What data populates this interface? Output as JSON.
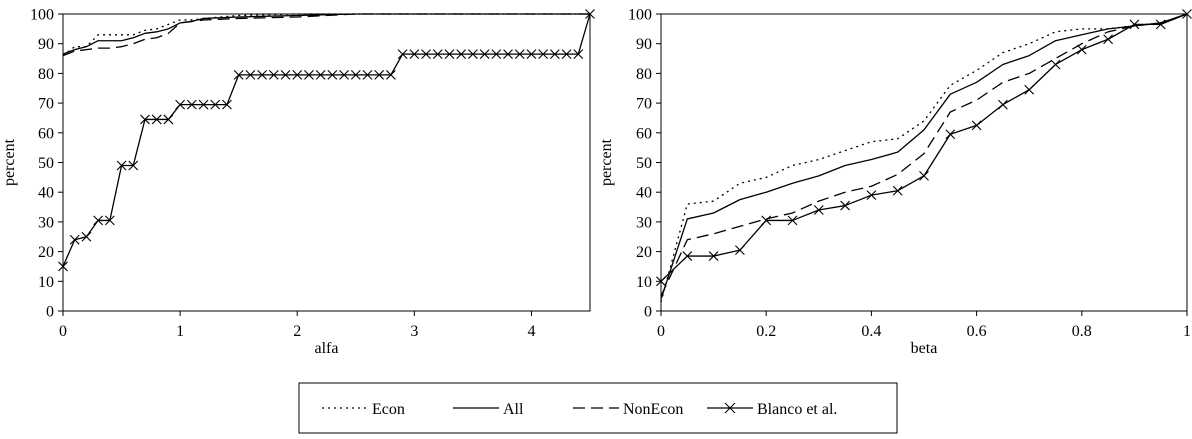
{
  "figure": {
    "legend": {
      "placement": "bottom-center",
      "entries": [
        {
          "label": "Econ",
          "style": "dotted",
          "marker": "none"
        },
        {
          "label": "All",
          "style": "solid",
          "marker": "none"
        },
        {
          "label": "NonEcon",
          "style": "dashed",
          "marker": "none"
        },
        {
          "label": "Blanco et al.",
          "style": "solid",
          "marker": "x"
        }
      ]
    }
  },
  "chart_data": [
    {
      "type": "line",
      "xlabel": "alfa",
      "ylabel": "percent",
      "xlim": [
        0,
        4.5
      ],
      "ylim": [
        0,
        100
      ],
      "xticks": [
        0,
        1,
        2,
        3,
        4
      ],
      "yticks": [
        0,
        10,
        20,
        30,
        40,
        50,
        60,
        70,
        80,
        90,
        100
      ],
      "grid": false,
      "series": [
        {
          "name": "Econ",
          "style": "dotted",
          "marker": "none",
          "x": [
            0,
            0.1,
            0.2,
            0.3,
            0.4,
            0.5,
            0.6,
            0.7,
            0.8,
            0.9,
            1.0,
            1.1,
            1.2,
            1.5,
            2.0,
            2.5,
            4.5
          ],
          "y": [
            86,
            89,
            89,
            93,
            93,
            93,
            93,
            94.5,
            95,
            96.5,
            98,
            98,
            98.5,
            99.5,
            100,
            100,
            100
          ]
        },
        {
          "name": "All",
          "style": "solid",
          "marker": "none",
          "x": [
            0,
            0.1,
            0.2,
            0.3,
            0.4,
            0.5,
            0.6,
            0.7,
            0.8,
            0.9,
            1.0,
            1.1,
            1.2,
            1.5,
            2.0,
            2.5,
            4.5
          ],
          "y": [
            86.5,
            88,
            89,
            91,
            91,
            91,
            92,
            93.5,
            94,
            95,
            97,
            97.5,
            98.5,
            99,
            99.5,
            100,
            100
          ]
        },
        {
          "name": "NonEcon",
          "style": "dashed",
          "marker": "none",
          "x": [
            0,
            0.1,
            0.2,
            0.3,
            0.4,
            0.5,
            0.6,
            0.7,
            0.8,
            0.9,
            1.0,
            1.1,
            1.2,
            1.5,
            2.0,
            2.5,
            4.5
          ],
          "y": [
            86,
            87.5,
            88,
            88.5,
            88.5,
            89,
            90,
            91.5,
            92,
            93.5,
            97,
            97.5,
            98,
            98.5,
            99,
            100,
            100
          ]
        },
        {
          "name": "Blanco et al.",
          "style": "solid",
          "marker": "x",
          "x": [
            0,
            0.1,
            0.2,
            0.3,
            0.4,
            0.5,
            0.6,
            0.7,
            0.8,
            0.9,
            1.0,
            1.1,
            1.2,
            1.3,
            1.4,
            1.5,
            1.6,
            1.7,
            1.8,
            1.9,
            2.0,
            2.1,
            2.2,
            2.3,
            2.4,
            2.5,
            2.6,
            2.7,
            2.8,
            2.9,
            3.0,
            3.1,
            3.2,
            3.3,
            3.4,
            3.5,
            3.6,
            3.7,
            3.8,
            3.9,
            4.0,
            4.1,
            4.2,
            4.3,
            4.4,
            4.5
          ],
          "y": [
            15,
            24,
            25,
            30.5,
            30.5,
            49,
            49,
            64.5,
            64.5,
            64.5,
            69.5,
            69.5,
            69.5,
            69.5,
            69.5,
            79.5,
            79.5,
            79.5,
            79.5,
            79.5,
            79.5,
            79.5,
            79.5,
            79.5,
            79.5,
            79.5,
            79.5,
            79.5,
            79.5,
            86.5,
            86.5,
            86.5,
            86.5,
            86.5,
            86.5,
            86.5,
            86.5,
            86.5,
            86.5,
            86.5,
            86.5,
            86.5,
            86.5,
            86.5,
            86.5,
            100
          ]
        }
      ]
    },
    {
      "type": "line",
      "xlabel": "beta",
      "ylabel": "percent",
      "xlim": [
        0,
        1
      ],
      "ylim": [
        0,
        100
      ],
      "xticks": [
        0,
        0.2,
        0.4,
        0.6,
        0.8,
        1
      ],
      "yticks": [
        0,
        10,
        20,
        30,
        40,
        50,
        60,
        70,
        80,
        90,
        100
      ],
      "grid": false,
      "series": [
        {
          "name": "Econ",
          "style": "dotted",
          "marker": "none",
          "x": [
            0,
            0.05,
            0.1,
            0.15,
            0.2,
            0.25,
            0.3,
            0.35,
            0.4,
            0.45,
            0.5,
            0.55,
            0.6,
            0.65,
            0.7,
            0.75,
            0.8,
            0.85,
            0.9,
            0.95,
            1
          ],
          "y": [
            3,
            36,
            37,
            43,
            45,
            49,
            51,
            54,
            57,
            58,
            64,
            76,
            81,
            87,
            90,
            94,
            95,
            95,
            96,
            97,
            100
          ]
        },
        {
          "name": "All",
          "style": "solid",
          "marker": "none",
          "x": [
            0,
            0.05,
            0.1,
            0.15,
            0.2,
            0.25,
            0.3,
            0.35,
            0.4,
            0.45,
            0.5,
            0.55,
            0.6,
            0.65,
            0.7,
            0.75,
            0.8,
            0.85,
            0.9,
            0.95,
            1
          ],
          "y": [
            4,
            31,
            33,
            37.5,
            40,
            43,
            45.5,
            49,
            51,
            53.5,
            61,
            73,
            77,
            83,
            86,
            91,
            93,
            95,
            96,
            97,
            100
          ]
        },
        {
          "name": "NonEcon",
          "style": "dashed",
          "marker": "none",
          "x": [
            0,
            0.05,
            0.1,
            0.15,
            0.2,
            0.25,
            0.3,
            0.35,
            0.4,
            0.45,
            0.5,
            0.55,
            0.6,
            0.65,
            0.7,
            0.75,
            0.8,
            0.85,
            0.9,
            0.95,
            1
          ],
          "y": [
            5,
            24,
            26,
            28.5,
            31,
            33,
            37,
            40,
            42,
            46,
            53,
            67,
            71,
            77,
            80,
            85,
            90,
            94,
            96,
            97,
            100
          ]
        },
        {
          "name": "Blanco et al.",
          "style": "solid",
          "marker": "x",
          "x": [
            0,
            0.05,
            0.1,
            0.15,
            0.2,
            0.25,
            0.3,
            0.35,
            0.4,
            0.45,
            0.5,
            0.55,
            0.6,
            0.65,
            0.7,
            0.75,
            0.8,
            0.85,
            0.9,
            0.95,
            1
          ],
          "y": [
            10,
            18.5,
            18.5,
            20.5,
            30.5,
            30.5,
            34,
            35.5,
            39,
            40.5,
            45.5,
            59.5,
            62.5,
            69.5,
            74.5,
            83,
            88,
            91.5,
            96.5,
            96.5,
            100
          ]
        }
      ]
    }
  ]
}
